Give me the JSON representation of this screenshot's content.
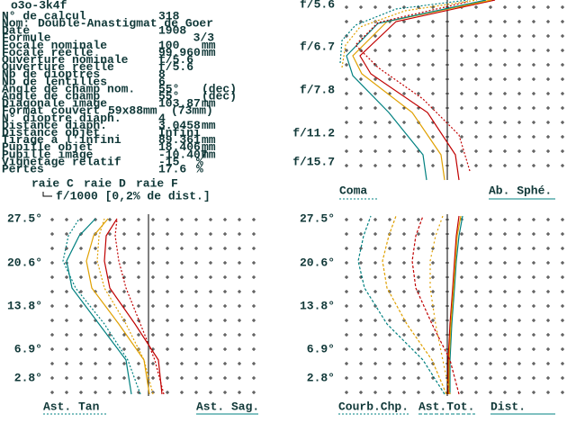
{
  "window_title": "o3o-3k4f",
  "info": [
    {
      "label": "N° de calcul",
      "value": "318"
    },
    {
      "label": "Nom:",
      "value": "Double-Anastigmat de Goer"
    },
    {
      "label": "Date",
      "value": "1908"
    },
    {
      "label": "Formule",
      "value": "3/3"
    },
    {
      "label": "Focale nominale",
      "value": "100",
      "unit": "mm"
    },
    {
      "label": "Focale réelle",
      "value": "99.960",
      "unit": "mm"
    },
    {
      "label": "Ouverture nominale",
      "value": "f/5.6"
    },
    {
      "label": "Ouverture réelle",
      "value": "f/5.6"
    },
    {
      "label": "Nb de dioptres",
      "value": "8"
    },
    {
      "label": "Nb de lentilles",
      "value": "6"
    },
    {
      "label": "Angle de champ nom.",
      "value": "55°",
      "unit": "(dec)"
    },
    {
      "label": "Angle de champ",
      "value": "55°",
      "unit": "(dec)"
    },
    {
      "label": "Diagonale image",
      "value": "103.87",
      "unit": "mm"
    },
    {
      "label": "Format couvert",
      "value": "59x88mm",
      "unit": "(73mm)"
    },
    {
      "label": "N° dioptre diaph.",
      "value": "4"
    },
    {
      "label": "Distance diaph.",
      "value": "3.0458",
      "unit": "mm"
    },
    {
      "label": "Distance objet",
      "value": "Infini"
    },
    {
      "label": "Tirage à l'infini",
      "value": "89.361",
      "unit": "mm"
    },
    {
      "label": "Pupille objet",
      "value": "18.406",
      "unit": "mm"
    },
    {
      "label": "Pupille image",
      "value": "-10.407",
      "unit": "mm"
    },
    {
      "label": "Vignetage relatif",
      "value": "-15",
      "unit": "%"
    },
    {
      "label": "Pertes",
      "value": "17.6",
      "unit": "%"
    }
  ],
  "legend": [
    "raie C",
    "raie D",
    "raie F"
  ],
  "scale_note": "f/1000 [0,2% de dist.]",
  "plots": [
    {
      "y_labels": [
        "f/5.6",
        "f/6.7",
        "f/7.8",
        "f/11.2",
        "f/15.7"
      ],
      "labels": [
        "Coma",
        "Ab. Sphé."
      ]
    },
    {
      "y_labels": [
        "27.5°",
        "20.6°",
        "13.8°",
        "6.9°",
        "2.8°"
      ],
      "labels": [
        "Ast. Tan",
        "Ast. Sag."
      ]
    },
    {
      "y_labels": [
        "27.5°",
        "20.6°",
        "13.8°",
        "6.9°",
        "2.8°"
      ],
      "labels": [
        "Courb.Chp.",
        "Ast.Tot.",
        "Dist."
      ]
    }
  ]
}
